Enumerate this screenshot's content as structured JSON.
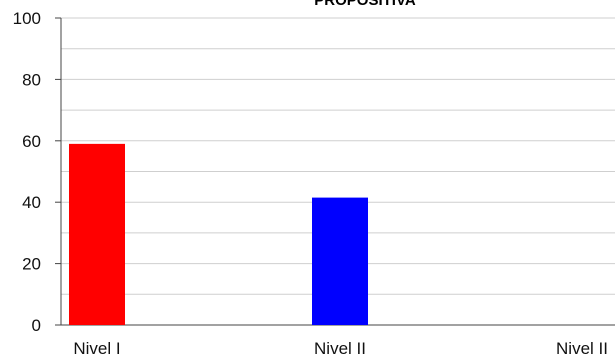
{
  "chart_data": {
    "type": "bar",
    "title": "PROPOSITIVA",
    "categories": [
      "Nivel I",
      "Nivel II",
      "Nivel II"
    ],
    "series": [
      {
        "values": [
          59,
          41.5,
          0
        ]
      }
    ],
    "bar_colors": [
      "#ff0000",
      "#0000ff",
      "#00a000"
    ],
    "ylim": [
      0,
      100
    ],
    "yticks": [
      "0",
      "20",
      "40",
      "60",
      "80",
      "100"
    ],
    "grid": true,
    "xlabel": "",
    "ylabel": ""
  }
}
